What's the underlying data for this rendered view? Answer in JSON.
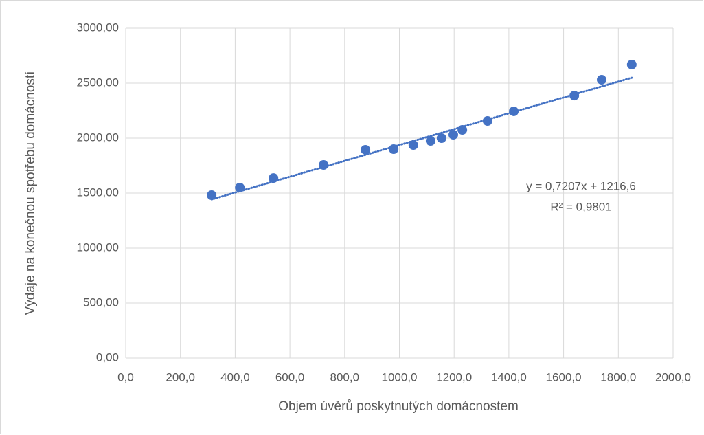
{
  "chart_data": {
    "type": "scatter",
    "x_label": "Objem úvěrů poskytnutých domácnostem",
    "y_label": "Výdaje na konečnou spotřebu domácností",
    "series": [
      {
        "color": "#4472c4",
        "x": [
          314,
          417,
          540,
          723,
          876,
          979,
          1051,
          1114,
          1154,
          1197,
          1230,
          1322,
          1418,
          1639,
          1739,
          1849
        ],
        "values": [
          1481,
          1550,
          1637,
          1756,
          1894,
          1900,
          1937,
          1975,
          2000,
          2031,
          2075,
          2156,
          2244,
          2387,
          2531,
          2669
        ]
      }
    ],
    "trendline": {
      "slope": 0.7207,
      "intercept": 1216.6,
      "equation": "y = 0,7207x + 1216,6",
      "r_squared": "R² = 0,9801"
    },
    "xlim": [
      0,
      2000
    ],
    "xticks": [
      {
        "value": 0,
        "label": "0,0"
      },
      {
        "value": 200,
        "label": "200,0"
      },
      {
        "value": 400,
        "label": "400,0"
      },
      {
        "value": 600,
        "label": "600,0"
      },
      {
        "value": 800,
        "label": "800,0"
      },
      {
        "value": 1000,
        "label": "1000,0"
      },
      {
        "value": 1200,
        "label": "1200,0"
      },
      {
        "value": 1400,
        "label": "1400,0"
      },
      {
        "value": 1600,
        "label": "1600,0"
      },
      {
        "value": 1800,
        "label": "1800,0"
      },
      {
        "value": 2000,
        "label": "2000,0"
      }
    ],
    "ylim": [
      0,
      3000
    ],
    "yticks": [
      {
        "value": 0,
        "label": "0,00"
      },
      {
        "value": 500,
        "label": "500,00"
      },
      {
        "value": 1000,
        "label": "1000,00"
      },
      {
        "value": 1500,
        "label": "1500,00"
      },
      {
        "value": 2000,
        "label": "2000,00"
      },
      {
        "value": 2500,
        "label": "2500,00"
      },
      {
        "value": 3000,
        "label": "3000,00"
      }
    ],
    "grid": true
  }
}
